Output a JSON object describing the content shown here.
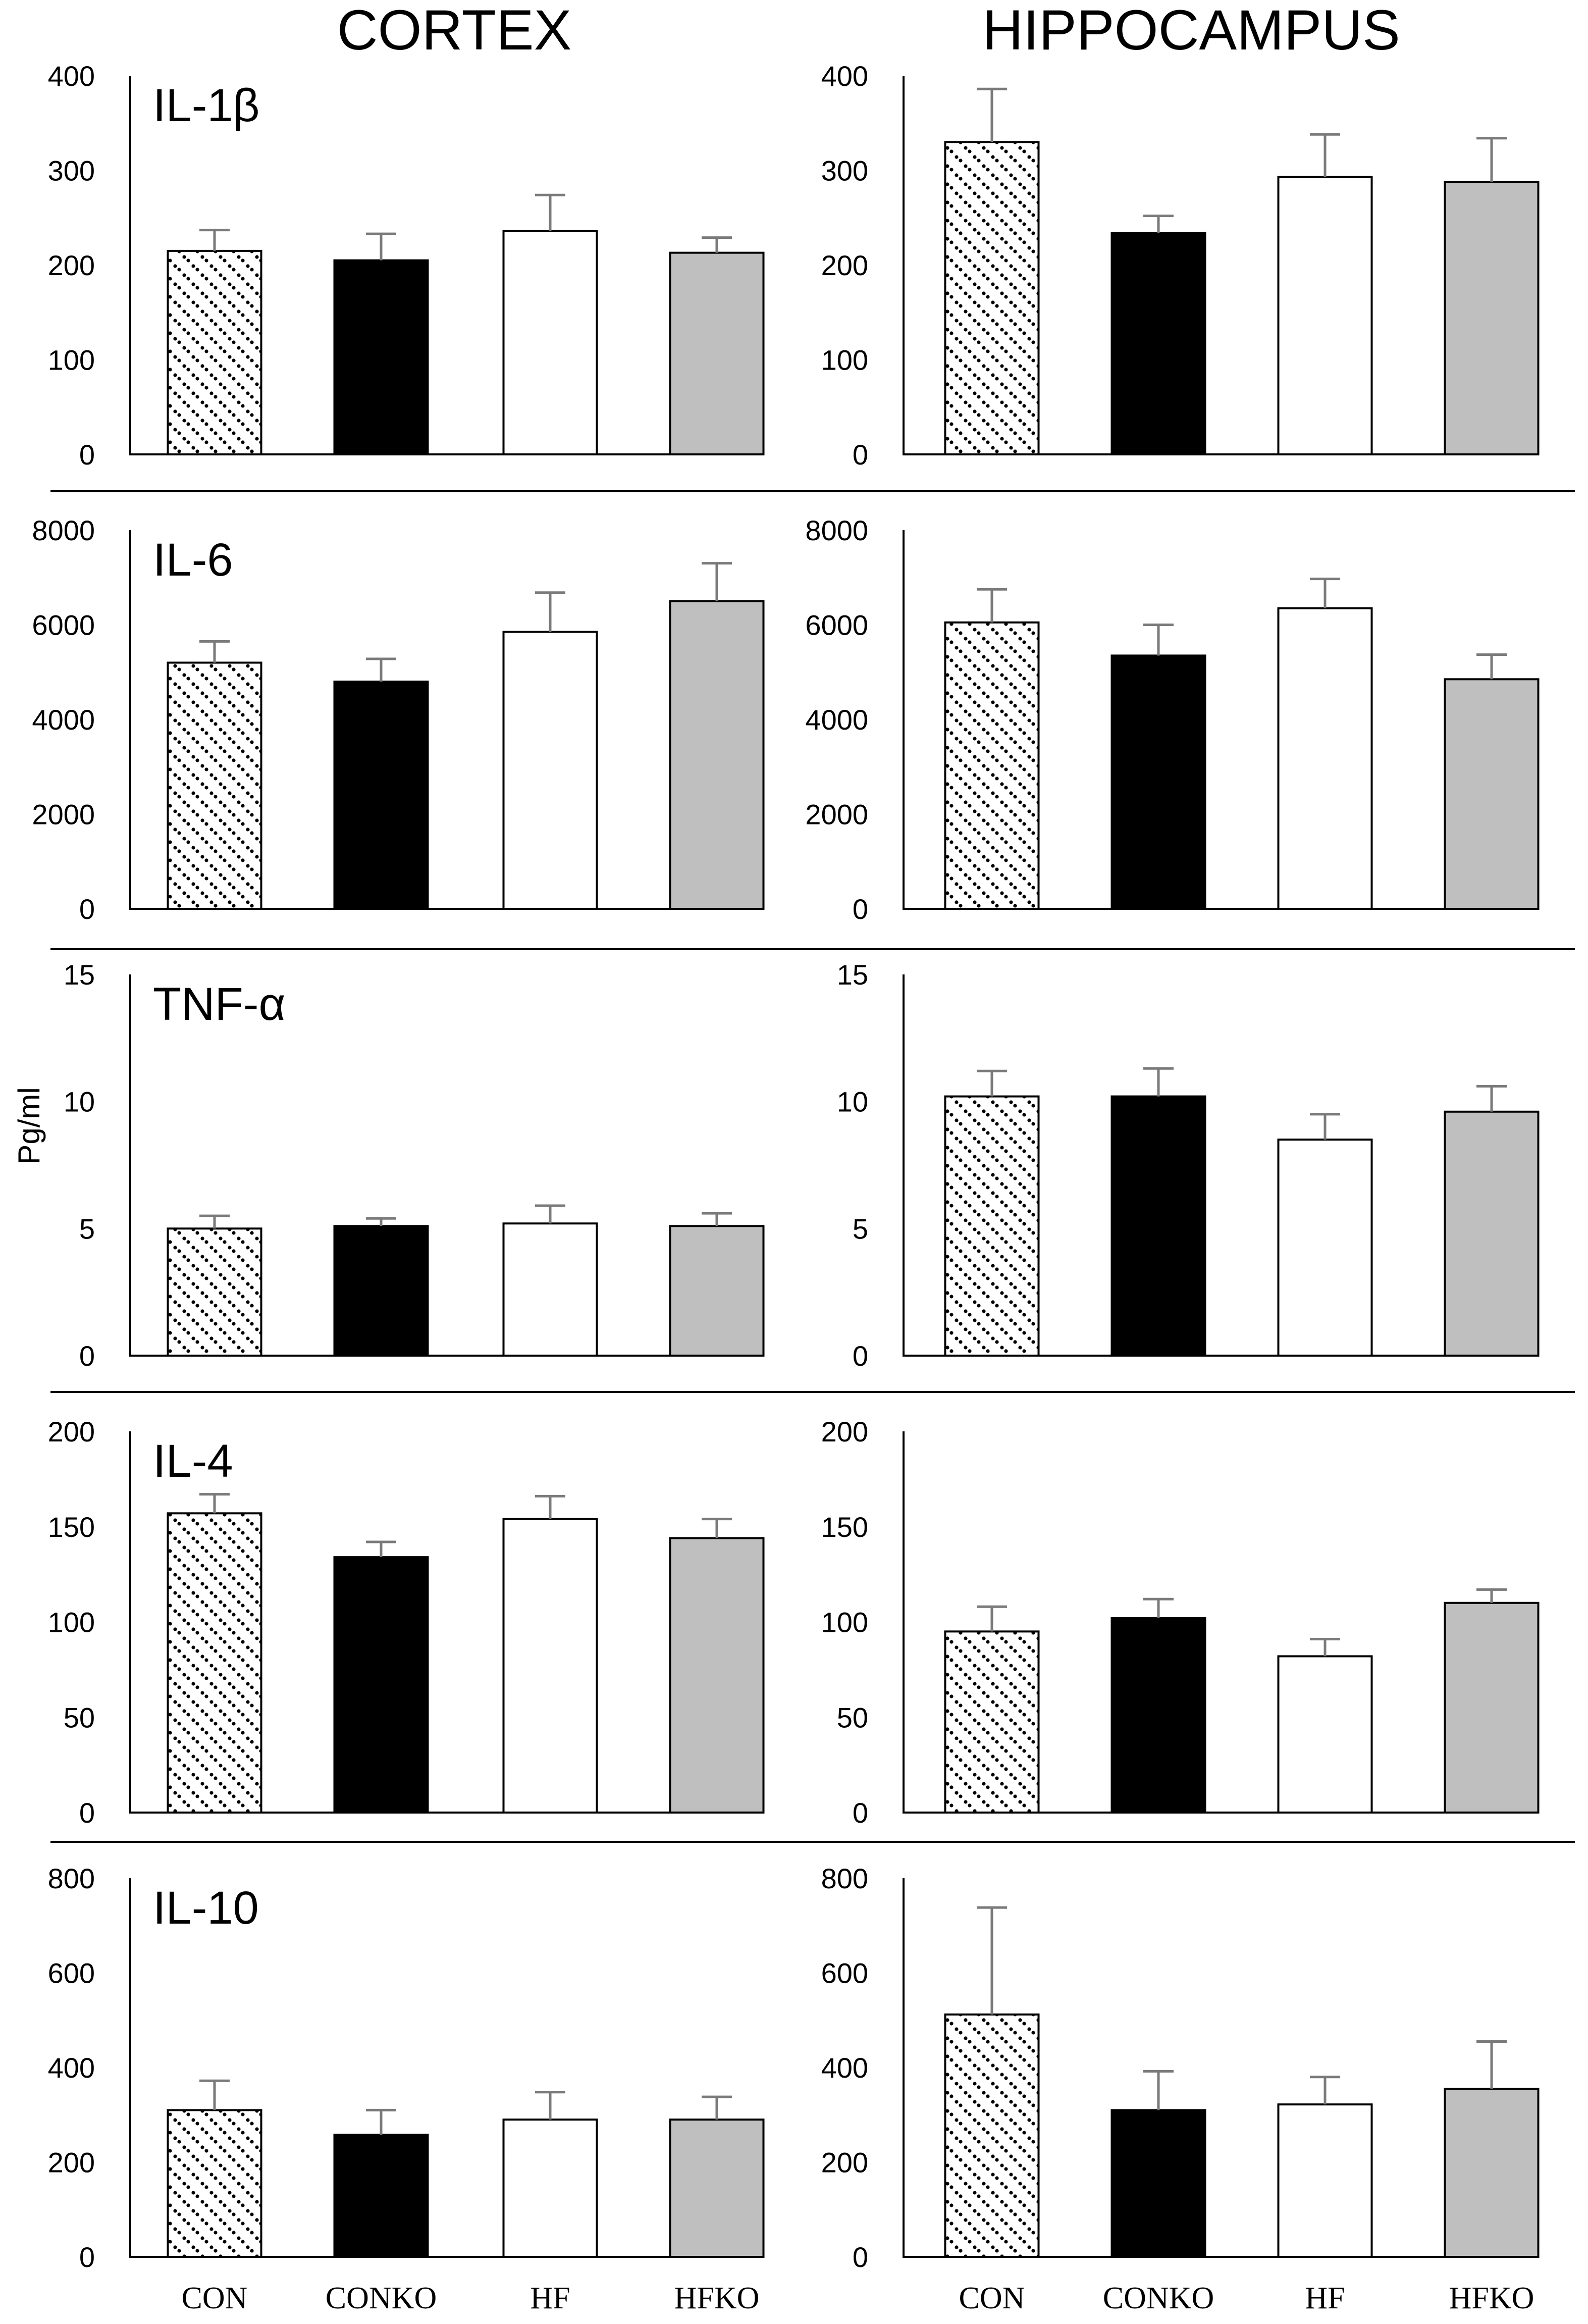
{
  "chart_data": {
    "type": "bar",
    "columns": [
      "CORTEX",
      "HIPPOCAMPUS"
    ],
    "ylabel": "Pg/ml",
    "categories": [
      "CON",
      "CONKO",
      "HF",
      "HFKO"
    ],
    "category_fills": [
      "dots",
      "#000000",
      "#ffffff",
      "#bfbfbf"
    ],
    "panels": [
      {
        "title": "IL-1β",
        "cortex": {
          "ylim": [
            0,
            400
          ],
          "ticks": [
            "0",
            "100",
            "200",
            "300",
            "400"
          ],
          "values": [
            215,
            205,
            236,
            213
          ],
          "errors": [
            22,
            28,
            38,
            16
          ]
        },
        "hippocampus": {
          "ylim": [
            0,
            400
          ],
          "ticks": [
            "0",
            "100",
            "200",
            "300",
            "400"
          ],
          "values": [
            330,
            234,
            293,
            288
          ],
          "errors": [
            56,
            18,
            45,
            46
          ]
        }
      },
      {
        "title": "IL-6",
        "cortex": {
          "ylim": [
            0,
            8000
          ],
          "ticks": [
            "0",
            "2000",
            "4000",
            "6000",
            "8000"
          ],
          "values": [
            5200,
            4800,
            5850,
            6500
          ],
          "errors": [
            450,
            480,
            830,
            800
          ]
        },
        "hippocampus": {
          "ylim": [
            0,
            8000
          ],
          "ticks": [
            "0",
            "2000",
            "4000",
            "6000",
            "8000"
          ],
          "values": [
            6050,
            5350,
            6350,
            4850
          ],
          "errors": [
            700,
            650,
            620,
            520
          ]
        }
      },
      {
        "title": "TNF-α",
        "cortex": {
          "ylim": [
            0,
            15
          ],
          "ticks": [
            "0",
            "5",
            "10",
            "15"
          ],
          "values": [
            5.0,
            5.1,
            5.2,
            5.1
          ],
          "errors": [
            0.5,
            0.3,
            0.7,
            0.5
          ]
        },
        "hippocampus": {
          "ylim": [
            0,
            15
          ],
          "ticks": [
            "0",
            "5",
            "10",
            "15"
          ],
          "values": [
            10.2,
            10.2,
            8.5,
            9.6
          ],
          "errors": [
            1.0,
            1.1,
            1.0,
            1.0
          ]
        }
      },
      {
        "title": "IL-4",
        "cortex": {
          "ylim": [
            0,
            200
          ],
          "ticks": [
            "0",
            "50",
            "100",
            "150",
            "200"
          ],
          "values": [
            157,
            134,
            154,
            144
          ],
          "errors": [
            10,
            8,
            12,
            10
          ]
        },
        "hippocampus": {
          "ylim": [
            0,
            200
          ],
          "ticks": [
            "0",
            "50",
            "100",
            "150",
            "200"
          ],
          "values": [
            95,
            102,
            82,
            110
          ],
          "errors": [
            13,
            10,
            9,
            7
          ]
        }
      },
      {
        "title": "IL-10",
        "cortex": {
          "ylim": [
            0,
            800
          ],
          "ticks": [
            "0",
            "200",
            "400",
            "600",
            "800"
          ],
          "values": [
            310,
            258,
            290,
            290
          ],
          "errors": [
            62,
            52,
            58,
            48
          ]
        },
        "hippocampus": {
          "ylim": [
            0,
            800
          ],
          "ticks": [
            "0",
            "200",
            "400",
            "600",
            "800"
          ],
          "values": [
            512,
            310,
            322,
            355
          ],
          "errors": [
            226,
            82,
            58,
            100
          ]
        }
      }
    ]
  }
}
